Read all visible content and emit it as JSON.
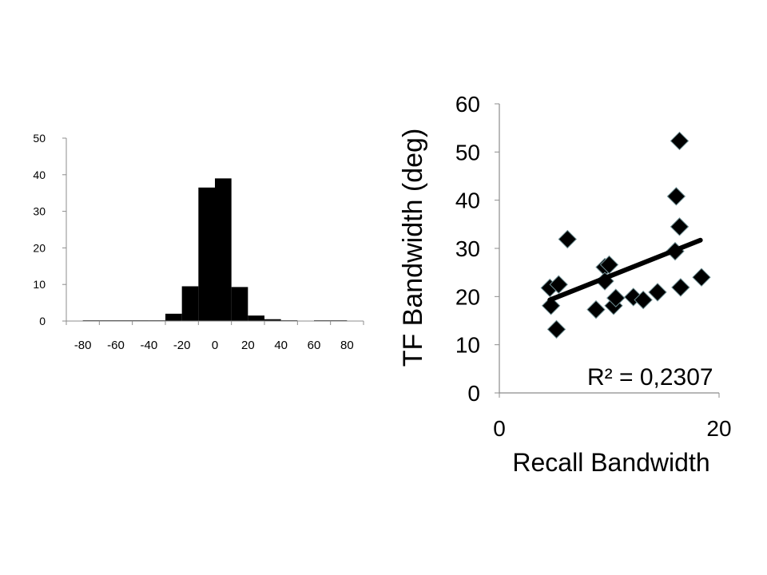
{
  "chart_data": [
    {
      "type": "bar",
      "title": "",
      "xlabel": "",
      "ylabel": "",
      "ylim": [
        0,
        50
      ],
      "y_ticks": [
        "0",
        "10",
        "20",
        "30",
        "40",
        "50"
      ],
      "x_ticks": [
        "-80",
        "-60",
        "-40",
        "-20",
        "0",
        "20",
        "40",
        "60",
        "80"
      ],
      "bin_width": 10,
      "bins": [
        {
          "start": -80,
          "value": 0.2
        },
        {
          "start": -70,
          "value": 0.2
        },
        {
          "start": -60,
          "value": 0.2
        },
        {
          "start": -50,
          "value": 0.2
        },
        {
          "start": -40,
          "value": 0.2
        },
        {
          "start": -30,
          "value": 2
        },
        {
          "start": -20,
          "value": 9.5
        },
        {
          "start": -10,
          "value": 36.5
        },
        {
          "start": 0,
          "value": 39
        },
        {
          "start": 10,
          "value": 9.3
        },
        {
          "start": 20,
          "value": 1.5
        },
        {
          "start": 30,
          "value": 0.5
        },
        {
          "start": 40,
          "value": 0.2
        },
        {
          "start": 50,
          "value": 0
        },
        {
          "start": 60,
          "value": 0.2
        },
        {
          "start": 70,
          "value": 0.2
        }
      ],
      "grid": false,
      "colors": {
        "bars": "#000000",
        "axis": "#8c8c8c"
      }
    },
    {
      "type": "scatter",
      "title": "",
      "xlabel": "Recall Bandwidth",
      "ylabel": "TF Bandwidth (deg)",
      "xlim": [
        0,
        20
      ],
      "ylim": [
        0,
        60
      ],
      "x_ticks": [
        "0",
        "20"
      ],
      "y_ticks": [
        "0",
        "10",
        "20",
        "30",
        "40",
        "50",
        "60"
      ],
      "annotation": "R² = 0,2307",
      "points": [
        {
          "x": 4.6,
          "y": 21.8
        },
        {
          "x": 4.7,
          "y": 18.1
        },
        {
          "x": 5.2,
          "y": 13.2
        },
        {
          "x": 5.4,
          "y": 22.5
        },
        {
          "x": 6.2,
          "y": 31.9
        },
        {
          "x": 8.8,
          "y": 17.3
        },
        {
          "x": 9.6,
          "y": 26.1
        },
        {
          "x": 9.6,
          "y": 23.2
        },
        {
          "x": 10.0,
          "y": 26.6
        },
        {
          "x": 10.4,
          "y": 18.1
        },
        {
          "x": 10.6,
          "y": 19.7
        },
        {
          "x": 12.2,
          "y": 19.9
        },
        {
          "x": 13.1,
          "y": 19.3
        },
        {
          "x": 14.4,
          "y": 20.9
        },
        {
          "x": 16.0,
          "y": 29.4
        },
        {
          "x": 16.1,
          "y": 40.8
        },
        {
          "x": 16.4,
          "y": 52.3
        },
        {
          "x": 16.4,
          "y": 34.5
        },
        {
          "x": 16.5,
          "y": 21.9
        },
        {
          "x": 18.4,
          "y": 24.0
        }
      ],
      "trendline": {
        "x": [
          4.6,
          18.3
        ],
        "y": [
          19.3,
          31.7
        ]
      },
      "grid": false,
      "colors": {
        "markers": "#000000",
        "marker_edge": "#6f8f94",
        "trendline": "#000000",
        "axis": "#8c8c8c"
      }
    }
  ]
}
